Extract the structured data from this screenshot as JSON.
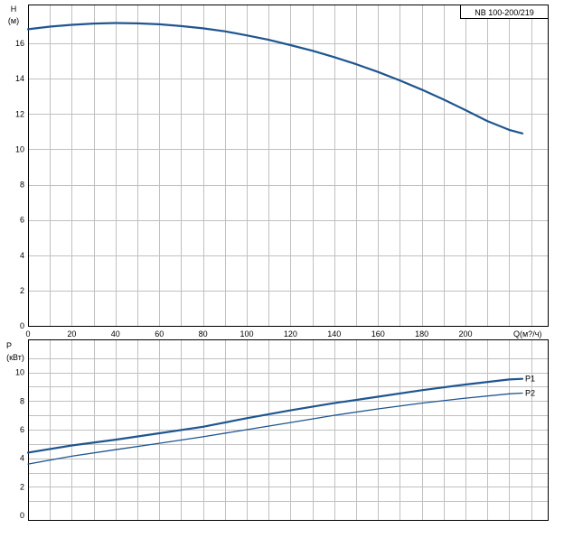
{
  "model_label": "NB 100-200/219",
  "colors": {
    "grid": "#c0c0c0",
    "frame": "#000000",
    "curve": "#1f5590"
  },
  "chart_data": [
    {
      "type": "line",
      "ylabel_lines": [
        "H",
        "(м)"
      ],
      "xlabel": "Q(м?/ч)",
      "xlim": [
        0,
        238
      ],
      "ylim": [
        0,
        18.2
      ],
      "x_ticks": [
        0,
        20,
        40,
        60,
        80,
        100,
        120,
        140,
        160,
        180,
        200
      ],
      "y_ticks": [
        0,
        2,
        4,
        6,
        8,
        10,
        12,
        14,
        16
      ],
      "grid": true,
      "series": [
        {
          "x": [
            0,
            10,
            20,
            30,
            40,
            50,
            60,
            70,
            80,
            90,
            100,
            110,
            120,
            130,
            140,
            150,
            160,
            170,
            180,
            190,
            200,
            210,
            220,
            226
          ],
          "y": [
            16.8,
            16.95,
            17.05,
            17.12,
            17.15,
            17.13,
            17.08,
            16.98,
            16.85,
            16.68,
            16.45,
            16.2,
            15.9,
            15.58,
            15.22,
            14.82,
            14.38,
            13.9,
            13.38,
            12.82,
            12.22,
            11.6,
            11.1,
            10.9
          ]
        }
      ]
    },
    {
      "type": "line",
      "ylabel_lines": [
        "P",
        "(кВт)"
      ],
      "xlim": [
        0,
        238
      ],
      "ylim": [
        -0.3,
        12.3
      ],
      "y_ticks": [
        0,
        2,
        4,
        6,
        8,
        10
      ],
      "grid": true,
      "legend_placement": "line-end labels",
      "series": [
        {
          "name": "P1",
          "x": [
            0,
            20,
            40,
            60,
            80,
            100,
            120,
            140,
            160,
            180,
            200,
            220,
            226
          ],
          "y": [
            4.4,
            4.9,
            5.3,
            5.75,
            6.2,
            6.8,
            7.35,
            7.85,
            8.3,
            8.75,
            9.15,
            9.5,
            9.55
          ]
        },
        {
          "name": "P2",
          "x": [
            0,
            20,
            40,
            60,
            80,
            100,
            120,
            140,
            160,
            180,
            200,
            220,
            226
          ],
          "y": [
            3.6,
            4.15,
            4.6,
            5.05,
            5.5,
            6.0,
            6.5,
            7.0,
            7.45,
            7.85,
            8.2,
            8.5,
            8.55
          ]
        }
      ]
    }
  ]
}
